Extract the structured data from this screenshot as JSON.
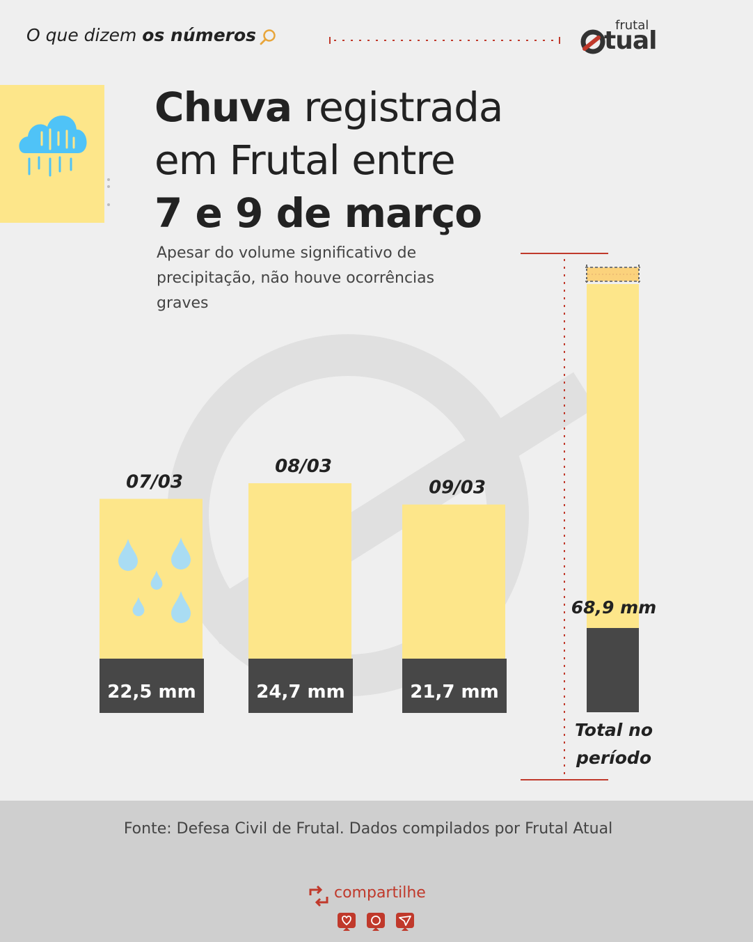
{
  "header": {
    "kicker_prefix": "O que dizem ",
    "kicker_bold": "os números",
    "logo_small": "frutal",
    "logo_big": "tual"
  },
  "title": {
    "line1_bold": "Chuva",
    "line1_rest": " registrada",
    "line2": "em Frutal entre",
    "line3": "7 e 9 de março"
  },
  "subtitle": "Apesar do volume significativo de precipitação, não houve ocorrências graves",
  "chart_data": {
    "type": "bar",
    "categories": [
      "07/03",
      "08/03",
      "09/03"
    ],
    "values": [
      22.5,
      24.7,
      21.7
    ],
    "value_labels": [
      "22,5 mm",
      "24,7 mm",
      "21,7 mm"
    ],
    "unit": "mm",
    "total": {
      "label": "Total no período",
      "label_line1": "Total no",
      "label_line2": "período",
      "value": 68.9,
      "value_label": "68,9 mm"
    },
    "grid": false,
    "legend": "none"
  },
  "footer": {
    "source": "Fonte: Defesa Civil de Frutal. Dados compilados por Frutal Atual",
    "share_label": "compartilhe",
    "share_buttons": [
      "like-icon",
      "comment-icon",
      "send-icon"
    ]
  },
  "colors": {
    "background": "#efefef",
    "bar_yellow": "#fde68a",
    "bar_orange": "#fbd27c",
    "label_dark": "#474747",
    "accent_red": "#c0392b",
    "rain_blue": "#4fc3f7",
    "footer_grey": "#cfcfcf"
  }
}
